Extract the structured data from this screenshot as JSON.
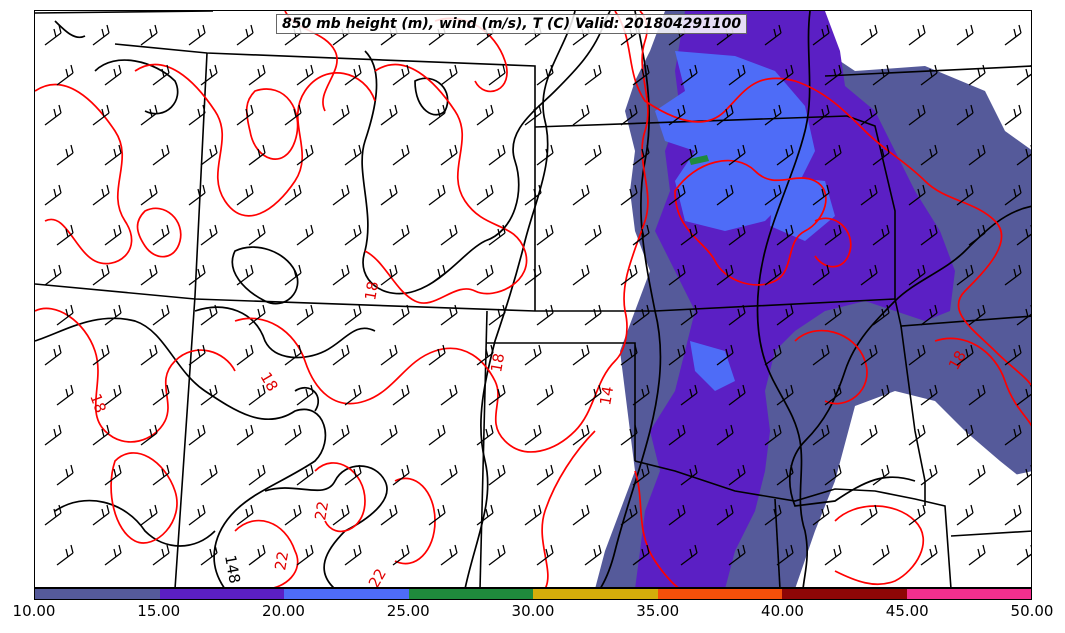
{
  "title": "850 mb height (m), wind (m/s), T (C) Valid: 201804291100",
  "colorbar": {
    "tick_labels": [
      "10.00",
      "15.00",
      "20.00",
      "25.00",
      "30.00",
      "35.00",
      "40.00",
      "45.00",
      "50.00"
    ],
    "colors": [
      "#555a9a",
      "#5b1fc4",
      "#4e6cf7",
      "#1f8a3c",
      "#d4ad0b",
      "#f5500a",
      "#8e0606",
      "#f22f8e"
    ]
  },
  "contour_labels": {
    "temperature": [
      "18",
      "18",
      "18",
      "18",
      "18",
      "14",
      "22",
      "22",
      "22"
    ],
    "height": [
      "148"
    ]
  },
  "colors": {
    "temperature_contour": "#ff0000",
    "height_contour": "#000000",
    "border": "#000000"
  },
  "icons": [
    "wind-barb-icon"
  ]
}
